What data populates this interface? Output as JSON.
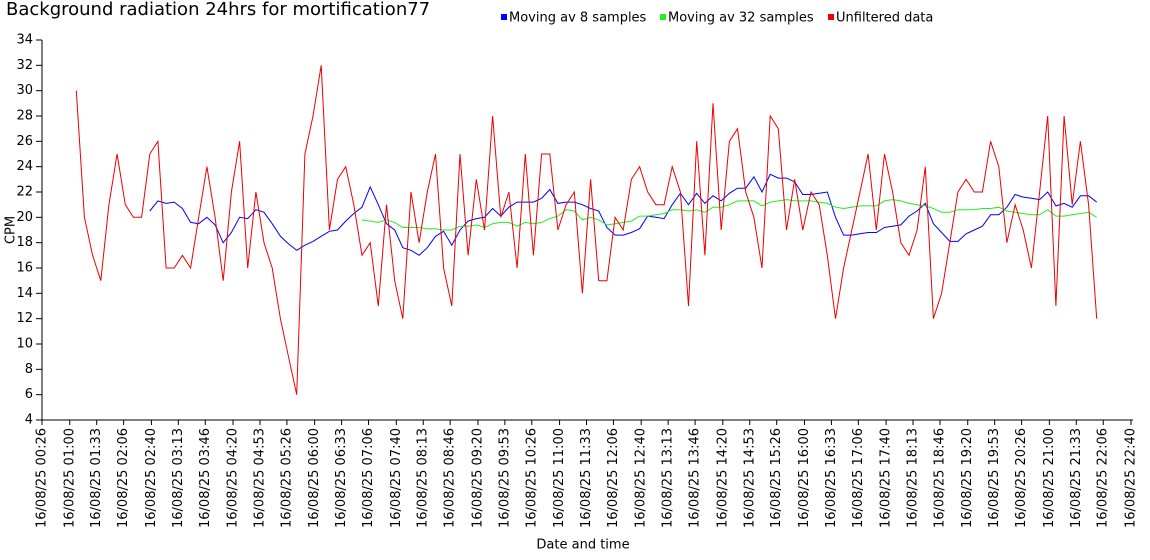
{
  "chart_data": {
    "type": "line",
    "title": "Background radiation 24hrs for mortification77",
    "xlabel": "Date and time",
    "ylabel": "CPM",
    "xlim": [
      "16/08/25 00:26",
      "16/08/25 22:40"
    ],
    "xticks": [
      "16/08/25 00:26",
      "16/08/25 01:00",
      "16/08/25 01:33",
      "16/08/25 02:06",
      "16/08/25 02:40",
      "16/08/25 03:13",
      "16/08/25 03:46",
      "16/08/25 04:20",
      "16/08/25 04:53",
      "16/08/25 05:26",
      "16/08/25 06:00",
      "16/08/25 06:33",
      "16/08/25 07:06",
      "16/08/25 07:40",
      "16/08/25 08:13",
      "16/08/25 08:46",
      "16/08/25 09:20",
      "16/08/25 09:53",
      "16/08/25 10:26",
      "16/08/25 11:00",
      "16/08/25 11:33",
      "16/08/25 12:06",
      "16/08/25 12:40",
      "16/08/25 13:13",
      "16/08/25 13:46",
      "16/08/25 14:20",
      "16/08/25 14:53",
      "16/08/25 15:26",
      "16/08/25 16:00",
      "16/08/25 16:33",
      "16/08/25 17:06",
      "16/08/25 17:40",
      "16/08/25 18:13",
      "16/08/25 18:46",
      "16/08/25 19:20",
      "16/08/25 19:53",
      "16/08/25 20:26",
      "16/08/25 21:00",
      "16/08/25 21:33",
      "16/08/25 22:06",
      "16/08/25 22:40"
    ],
    "ylim": [
      4,
      34
    ],
    "yticks": [
      4,
      6,
      8,
      10,
      12,
      14,
      16,
      18,
      20,
      22,
      24,
      26,
      28,
      30,
      32,
      34
    ],
    "grid": false,
    "legend": "top",
    "x": [
      "16/08/25 01:08",
      "16/08/25 01:18",
      "16/08/25 01:28",
      "16/08/25 01:38",
      "16/08/25 01:48",
      "16/08/25 01:58",
      "16/08/25 02:08",
      "16/08/25 02:18",
      "16/08/25 02:28",
      "16/08/25 02:38",
      "16/08/25 02:48",
      "16/08/25 02:58",
      "16/08/25 03:08",
      "16/08/25 03:18",
      "16/08/25 03:28",
      "16/08/25 03:38",
      "16/08/25 03:48",
      "16/08/25 03:58",
      "16/08/25 04:08",
      "16/08/25 04:18",
      "16/08/25 04:28",
      "16/08/25 04:38",
      "16/08/25 04:48",
      "16/08/25 04:58",
      "16/08/25 05:08",
      "16/08/25 05:18",
      "16/08/25 05:28",
      "16/08/25 05:38",
      "16/08/25 05:48",
      "16/08/25 05:58",
      "16/08/25 06:08",
      "16/08/25 06:18",
      "16/08/25 06:28",
      "16/08/25 06:38",
      "16/08/25 06:48",
      "16/08/25 06:58",
      "16/08/25 07:08",
      "16/08/25 07:18",
      "16/08/25 07:28",
      "16/08/25 07:38",
      "16/08/25 07:48",
      "16/08/25 07:58",
      "16/08/25 08:08",
      "16/08/25 08:18",
      "16/08/25 08:28",
      "16/08/25 08:38",
      "16/08/25 08:48",
      "16/08/25 08:58",
      "16/08/25 09:08",
      "16/08/25 09:18",
      "16/08/25 09:28",
      "16/08/25 09:38",
      "16/08/25 09:48",
      "16/08/25 09:58",
      "16/08/25 10:08",
      "16/08/25 10:18",
      "16/08/25 10:28",
      "16/08/25 10:38",
      "16/08/25 10:48",
      "16/08/25 10:58",
      "16/08/25 11:08",
      "16/08/25 11:18",
      "16/08/25 11:28",
      "16/08/25 11:38",
      "16/08/25 11:48",
      "16/08/25 11:58",
      "16/08/25 12:08",
      "16/08/25 12:18",
      "16/08/25 12:28",
      "16/08/25 12:38",
      "16/08/25 12:48",
      "16/08/25 12:58",
      "16/08/25 13:08",
      "16/08/25 13:18",
      "16/08/25 13:28",
      "16/08/25 13:38",
      "16/08/25 13:48",
      "16/08/25 13:58",
      "16/08/25 14:08",
      "16/08/25 14:18",
      "16/08/25 14:28",
      "16/08/25 14:38",
      "16/08/25 14:48",
      "16/08/25 14:58",
      "16/08/25 15:08",
      "16/08/25 15:18",
      "16/08/25 15:28",
      "16/08/25 15:38",
      "16/08/25 15:48",
      "16/08/25 15:58",
      "16/08/25 16:08",
      "16/08/25 16:18",
      "16/08/25 16:28",
      "16/08/25 16:38",
      "16/08/25 16:48",
      "16/08/25 16:58",
      "16/08/25 17:08",
      "16/08/25 17:18",
      "16/08/25 17:28",
      "16/08/25 17:38",
      "16/08/25 17:48",
      "16/08/25 17:58",
      "16/08/25 18:08",
      "16/08/25 18:18",
      "16/08/25 18:28",
      "16/08/25 18:38",
      "16/08/25 18:48",
      "16/08/25 18:58",
      "16/08/25 19:08",
      "16/08/25 19:18",
      "16/08/25 19:28",
      "16/08/25 19:38",
      "16/08/25 19:48",
      "16/08/25 19:58",
      "16/08/25 20:08",
      "16/08/25 20:18",
      "16/08/25 20:28",
      "16/08/25 20:38",
      "16/08/25 20:48",
      "16/08/25 20:58",
      "16/08/25 21:08",
      "16/08/25 21:18",
      "16/08/25 21:28",
      "16/08/25 21:38",
      "16/08/25 21:48",
      "16/08/25 21:58"
    ],
    "series": [
      {
        "name": "Moving av 8 samples",
        "color": "#0000ff",
        "values": [
          null,
          null,
          null,
          null,
          null,
          null,
          null,
          null,
          null,
          20.5,
          21.3,
          21.1,
          21.2,
          20.7,
          19.6,
          19.5,
          20,
          19.4,
          18,
          18.8,
          20,
          19.9,
          20.6,
          20.4,
          19.5,
          18.5,
          17.9,
          17.4,
          17.8,
          18.1,
          18.5,
          18.9,
          19,
          19.7,
          20.3,
          20.8,
          22.4,
          21,
          19.5,
          19,
          17.6,
          17.4,
          17,
          17.6,
          18.5,
          18.9,
          17.8,
          19,
          19.7,
          19.9,
          20,
          20.7,
          20.1,
          20.8,
          21.2,
          21.2,
          21.2,
          21.5,
          22.2,
          21.1,
          21.2,
          21.2,
          21,
          20.7,
          20.5,
          19.2,
          18.6,
          18.6,
          18.8,
          19.1,
          20.1,
          20,
          19.9,
          21,
          21.9,
          21,
          21.9,
          21.1,
          21.7,
          21.3,
          21.9,
          22.3,
          22.3,
          23.2,
          22,
          23.4,
          23.1,
          23.1,
          22.8,
          21.8,
          21.8,
          21.9,
          22,
          20,
          18.6,
          18.6,
          18.7,
          18.8,
          18.8,
          19.2,
          19.3,
          19.4,
          20.1,
          20.5,
          21.1,
          19.5,
          18.8,
          18.1,
          18.1,
          18.7,
          19,
          19.3,
          20.2,
          20.2,
          20.8,
          21.8,
          21.6,
          21.5,
          21.4,
          22,
          20.9,
          21.1,
          20.8,
          21.7,
          21.7,
          21.2
        ]
      },
      {
        "name": "Moving av 32 samples",
        "color": "#22ee22",
        "values": [
          null,
          null,
          null,
          null,
          null,
          null,
          null,
          null,
          null,
          null,
          null,
          null,
          null,
          null,
          null,
          null,
          null,
          null,
          null,
          null,
          null,
          null,
          null,
          null,
          null,
          null,
          null,
          null,
          null,
          null,
          null,
          null,
          null,
          null,
          null,
          19.8,
          19.7,
          19.6,
          19.8,
          19.6,
          19.2,
          19.2,
          19.2,
          19.1,
          19.1,
          19,
          19,
          19.3,
          19.3,
          19.4,
          19.2,
          19.5,
          19.6,
          19.6,
          19.3,
          19.6,
          19.5,
          19.6,
          19.9,
          20.1,
          20.6,
          20.5,
          19.8,
          20,
          19.8,
          19.4,
          19.5,
          19.6,
          19.7,
          20.1,
          20.1,
          20.2,
          20.3,
          20.6,
          20.6,
          20.5,
          20.6,
          20.4,
          20.8,
          20.8,
          21,
          21.3,
          21.3,
          21.3,
          20.9,
          21.2,
          21.3,
          21.4,
          21.3,
          21.3,
          21.3,
          21.2,
          21.1,
          20.8,
          20.7,
          20.8,
          20.9,
          20.9,
          20.9,
          21.3,
          21.4,
          21.3,
          21.1,
          21,
          20.9,
          20.7,
          20.4,
          20.4,
          20.6,
          20.6,
          20.6,
          20.7,
          20.7,
          20.8,
          20.5,
          20.4,
          20.3,
          20.2,
          20.2,
          20.6,
          20.1,
          20.1,
          20.2,
          20.3,
          20.4,
          20
        ]
      },
      {
        "name": "Unfiltered data",
        "color": "#ee0000",
        "values": [
          30,
          20,
          17,
          15,
          21,
          25,
          21,
          20,
          20,
          25,
          26,
          16,
          16,
          17,
          16,
          20,
          24,
          20,
          15,
          22,
          26,
          16,
          22,
          18,
          16,
          12,
          9,
          6,
          25,
          28,
          32,
          19,
          23,
          24,
          21,
          17,
          18,
          13,
          21,
          15,
          12,
          22,
          18,
          22,
          25,
          16,
          13,
          25,
          17,
          23,
          19,
          28,
          20,
          22,
          16,
          25,
          17,
          25,
          25,
          19,
          21,
          22,
          14,
          23,
          15,
          15,
          20,
          19,
          23,
          24,
          22,
          21,
          21,
          24,
          22,
          13,
          26,
          17,
          29,
          19,
          26,
          27,
          22,
          20,
          16,
          28,
          27,
          19,
          23,
          19,
          22,
          21,
          17,
          12,
          16,
          19,
          22,
          25,
          19,
          25,
          22,
          18,
          17,
          19,
          24,
          12,
          14,
          18,
          22,
          23,
          22,
          22,
          26,
          24,
          18,
          21,
          19,
          16,
          22,
          28,
          13,
          28,
          21,
          26,
          21,
          12
        ]
      }
    ]
  }
}
